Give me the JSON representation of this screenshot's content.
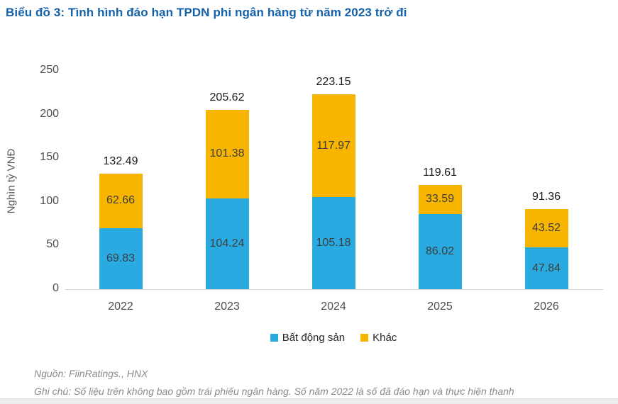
{
  "title": "Biểu đồ 3: Tình hình đáo hạn TPDN phi ngân hàng từ năm 2023 trở đi",
  "colors": {
    "title_blue": "#1561a8",
    "real_estate_blue": "#29abe2",
    "other_yellow": "#f7b500",
    "axis_line": "#d6d6d6",
    "note_gray": "#8a8a8a"
  },
  "chart_data": {
    "type": "bar",
    "stacked": true,
    "title": "Biểu đồ 3: Tình hình đáo hạn TPDN phi ngân hàng từ năm 2023 trở đi",
    "categories": [
      "2022",
      "2023",
      "2024",
      "2025",
      "2026"
    ],
    "series": [
      {
        "name": "Bất động sản",
        "color_key": "real_estate_blue",
        "values": [
          69.83,
          104.24,
          105.18,
          86.02,
          47.84
        ]
      },
      {
        "name": "Khác",
        "color_key": "other_yellow",
        "values": [
          62.66,
          101.38,
          117.97,
          33.59,
          43.52
        ]
      }
    ],
    "totals": [
      132.49,
      205.62,
      223.15,
      119.61,
      91.36
    ],
    "xlabel": "",
    "ylabel": "Nghìn tỷ VNĐ",
    "yticks": [
      0,
      50,
      100,
      150,
      200,
      250
    ],
    "ylim": [
      0,
      250
    ],
    "grid": false,
    "legend_position": "bottom"
  },
  "legend": {
    "items": [
      {
        "label": "Bất động sản",
        "color_key": "real_estate_blue"
      },
      {
        "label": "Khác",
        "color_key": "other_yellow"
      }
    ]
  },
  "notes": {
    "source": "Nguồn: FiinRatings., HNX",
    "note": "Ghi chú: Số liệu trên không bao gồm trái phiếu ngân hàng. Số năm 2022 là số đã đáo hạn và thực hiện thanh"
  }
}
